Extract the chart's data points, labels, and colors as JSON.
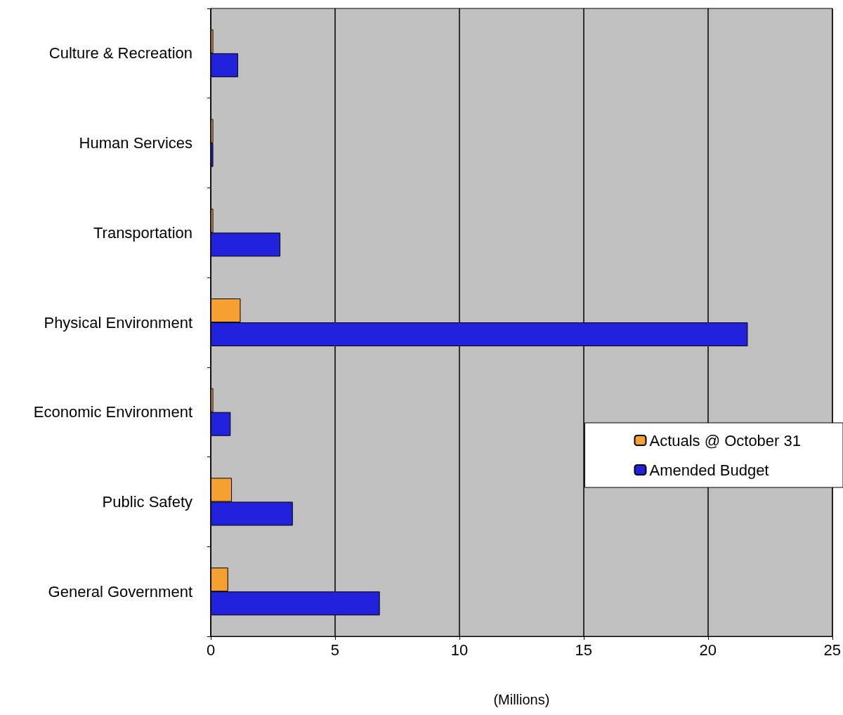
{
  "chart_data": {
    "type": "bar",
    "orientation": "horizontal",
    "xlabel": "(Millions)",
    "categories": [
      "Culture & Recreation",
      "Human Services",
      "Transportation",
      "Physical Environment",
      "Economic Environment",
      "Public Safety",
      "General Government"
    ],
    "series": [
      {
        "name": "Actuals @ October 31",
        "color": "#f5a030",
        "values": [
          0.1,
          0.1,
          0.1,
          1.2,
          0.1,
          0.85,
          0.7
        ]
      },
      {
        "name": "Amended Budget",
        "color": "#2222dd",
        "values": [
          1.1,
          0.1,
          2.8,
          21.6,
          0.8,
          3.3,
          6.8
        ]
      }
    ],
    "xlim": [
      0,
      25
    ],
    "xticks": [
      0,
      5,
      10,
      15,
      20,
      25
    ],
    "grid": "x",
    "legend": "right"
  }
}
